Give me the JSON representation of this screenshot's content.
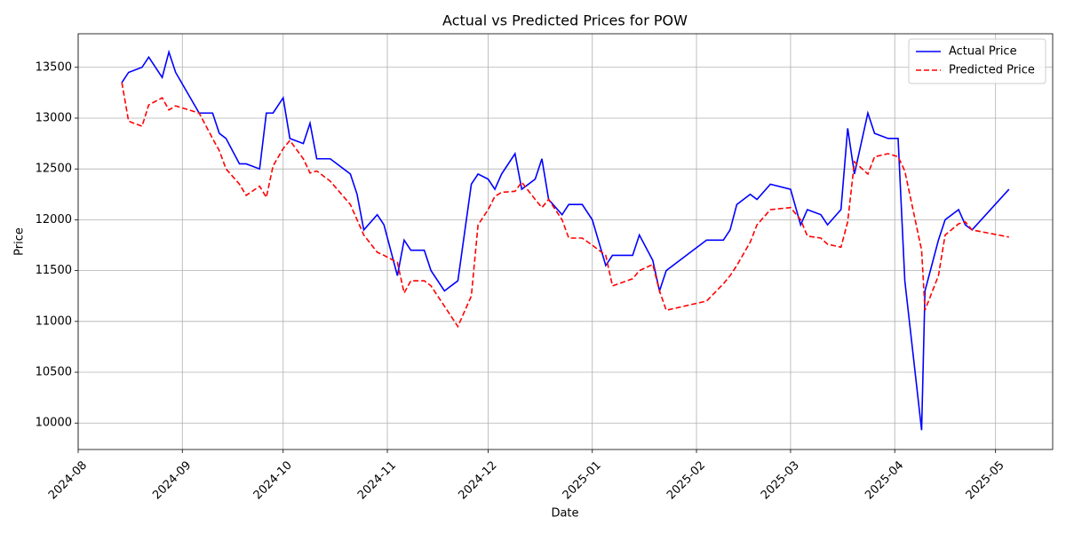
{
  "chart_data": {
    "type": "line",
    "title": "Actual vs Predicted Prices for POW",
    "x_label": "Date",
    "y_label": "Price",
    "x": [
      "2024-08-14",
      "2024-08-16",
      "2024-08-20",
      "2024-08-22",
      "2024-08-26",
      "2024-08-28",
      "2024-08-30",
      "2024-09-06",
      "2024-09-10",
      "2024-09-12",
      "2024-09-14",
      "2024-09-18",
      "2024-09-20",
      "2024-09-24",
      "2024-09-26",
      "2024-09-28",
      "2024-10-01",
      "2024-10-03",
      "2024-10-07",
      "2024-10-09",
      "2024-10-11",
      "2024-10-15",
      "2024-10-21",
      "2024-10-23",
      "2024-10-25",
      "2024-10-29",
      "2024-10-31",
      "2024-11-04",
      "2024-11-06",
      "2024-11-08",
      "2024-11-12",
      "2024-11-14",
      "2024-11-18",
      "2024-11-22",
      "2024-11-26",
      "2024-11-28",
      "2024-12-01",
      "2024-12-03",
      "2024-12-05",
      "2024-12-09",
      "2024-12-11",
      "2024-12-15",
      "2024-12-17",
      "2024-12-19",
      "2024-12-23",
      "2024-12-25",
      "2024-12-29",
      "2025-01-01",
      "2025-01-05",
      "2025-01-07",
      "2025-01-13",
      "2025-01-15",
      "2025-01-19",
      "2025-01-21",
      "2025-01-23",
      "2025-02-04",
      "2025-02-09",
      "2025-02-11",
      "2025-02-13",
      "2025-02-17",
      "2025-02-19",
      "2025-02-23",
      "2025-03-01",
      "2025-03-04",
      "2025-03-06",
      "2025-03-10",
      "2025-03-12",
      "2025-03-16",
      "2025-03-18",
      "2025-03-20",
      "2025-03-24",
      "2025-03-26",
      "2025-03-30",
      "2025-04-02",
      "2025-04-04",
      "2025-04-09",
      "2025-04-10",
      "2025-04-14",
      "2025-04-16",
      "2025-04-20",
      "2025-04-22",
      "2025-04-24",
      "2025-05-05"
    ],
    "series": [
      {
        "name": "Actual Price",
        "color": "#0000ff",
        "dash": "solid",
        "values": [
          13350,
          13450,
          13500,
          13600,
          13400,
          13650,
          13450,
          13050,
          13050,
          12850,
          12800,
          12550,
          12550,
          12500,
          13050,
          13050,
          13200,
          12800,
          12750,
          12950,
          12600,
          12600,
          12450,
          12250,
          11900,
          12050,
          11950,
          11450,
          11800,
          11700,
          11700,
          11500,
          11300,
          11400,
          12350,
          12450,
          12400,
          12300,
          12450,
          12650,
          12300,
          12400,
          12600,
          12200,
          12050,
          12150,
          12150,
          12000,
          11550,
          11650,
          11650,
          11850,
          11600,
          11300,
          11500,
          11800,
          11800,
          11900,
          12150,
          12250,
          12200,
          12350,
          12300,
          11950,
          12100,
          12050,
          11950,
          12100,
          12900,
          12450,
          13050,
          12850,
          12800,
          12800,
          11400,
          9930,
          11300,
          11800,
          12000,
          12100,
          11950,
          11900,
          12300
        ]
      },
      {
        "name": "Predicted Price",
        "color": "#ff0000",
        "dash": "dashed",
        "values": [
          13350,
          12970,
          12920,
          13130,
          13200,
          13080,
          13120,
          13050,
          12800,
          12680,
          12500,
          12350,
          12240,
          12330,
          12220,
          12530,
          12700,
          12780,
          12600,
          12460,
          12480,
          12380,
          12150,
          12000,
          11850,
          11680,
          11650,
          11580,
          11280,
          11400,
          11400,
          11350,
          11150,
          10950,
          11250,
          11950,
          12100,
          12230,
          12270,
          12280,
          12370,
          12200,
          12120,
          12200,
          12000,
          11820,
          11820,
          11750,
          11650,
          11350,
          11420,
          11500,
          11560,
          11300,
          11110,
          11200,
          11370,
          11450,
          11550,
          11780,
          11950,
          12100,
          12120,
          12000,
          11840,
          11820,
          11760,
          11730,
          11980,
          12570,
          12450,
          12620,
          12650,
          12620,
          12480,
          11700,
          11110,
          11450,
          11850,
          11960,
          11980,
          11900,
          11830
        ]
      }
    ],
    "xlim": [
      "2024-08-01",
      "2025-05-18"
    ],
    "xticks": [
      {
        "value": "2024-08-01",
        "label": "2024-08"
      },
      {
        "value": "2024-09-01",
        "label": "2024-09"
      },
      {
        "value": "2024-10-01",
        "label": "2024-10"
      },
      {
        "value": "2024-11-01",
        "label": "2024-11"
      },
      {
        "value": "2024-12-01",
        "label": "2024-12"
      },
      {
        "value": "2025-01-01",
        "label": "2025-01"
      },
      {
        "value": "2025-02-01",
        "label": "2025-02"
      },
      {
        "value": "2025-03-01",
        "label": "2025-03"
      },
      {
        "value": "2025-04-01",
        "label": "2025-04"
      },
      {
        "value": "2025-05-01",
        "label": "2025-05"
      }
    ],
    "ylim": [
      9740,
      13830
    ],
    "yticks": [
      10000,
      10500,
      11000,
      11500,
      12000,
      12500,
      13000,
      13500
    ],
    "grid": true,
    "legend": "upper right"
  }
}
